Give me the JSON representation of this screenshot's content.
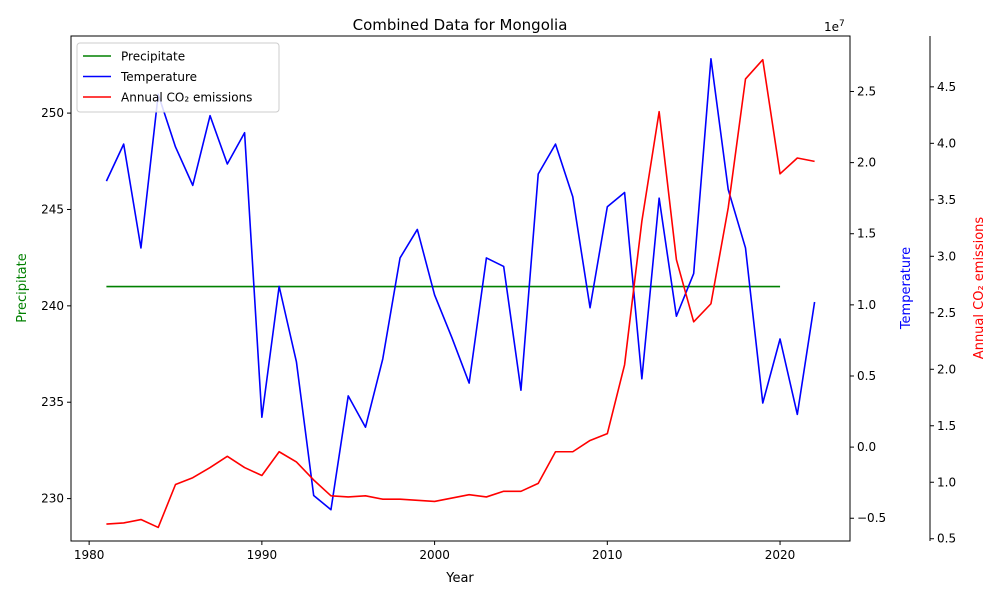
{
  "chart_data": {
    "type": "line",
    "title": "Combined Data for Mongolia",
    "xlabel": "Year",
    "xlim": [
      1978.95,
      2024.05
    ],
    "xticks": [
      1980,
      1990,
      2000,
      2010,
      2020
    ],
    "axes": {
      "left": {
        "label": "Precipitate",
        "color": "#008000",
        "ylim": [
          227.8,
          254.0
        ],
        "ticks": [
          230,
          235,
          240,
          245,
          250
        ],
        "multiplier": ""
      },
      "right": {
        "label": "Temperature",
        "color": "#0000ff",
        "ylim": [
          -0.66,
          2.89
        ],
        "ticks": [
          -0.5,
          0.0,
          0.5,
          1.0,
          1.5,
          2.0,
          2.5
        ],
        "multiplier": "1e7"
      },
      "right2": {
        "label": "Annual CO₂ emissions",
        "color": "#ff0000",
        "ylim": [
          0.48,
          4.95
        ],
        "ticks": [
          0.5,
          1.0,
          1.5,
          2.0,
          2.5,
          3.0,
          3.5,
          4.0,
          4.5
        ],
        "multiplier": "1e7"
      }
    },
    "series": [
      {
        "name": "Precipitate",
        "axis": "left",
        "color": "#008000",
        "x": [
          1981,
          2020
        ],
        "values": [
          241.0,
          241.0
        ]
      },
      {
        "name": "Temperature",
        "axis": "right",
        "color": "#0000ff",
        "x": [
          1981,
          1982,
          1983,
          1984,
          1985,
          1986,
          1987,
          1988,
          1989,
          1990,
          1991,
          1992,
          1993,
          1994,
          1995,
          1996,
          1997,
          1998,
          1999,
          2000,
          2001,
          2002,
          2003,
          2004,
          2005,
          2006,
          2007,
          2008,
          2009,
          2010,
          2011,
          2012,
          2013,
          2014,
          2015,
          2016,
          2017,
          2018,
          2019,
          2020,
          2021,
          2022
        ],
        "values": [
          1.87,
          2.13,
          1.4,
          2.48,
          2.11,
          1.84,
          2.33,
          1.99,
          2.21,
          0.21,
          1.13,
          0.6,
          -0.34,
          -0.44,
          0.36,
          0.14,
          0.62,
          1.33,
          1.53,
          1.07,
          0.77,
          0.45,
          1.33,
          1.27,
          0.4,
          1.92,
          2.13,
          1.76,
          0.98,
          1.69,
          1.79,
          0.48,
          1.75,
          0.92,
          1.22,
          2.73,
          1.81,
          1.4,
          0.31,
          0.76,
          0.23,
          1.02
        ]
      },
      {
        "name": "Annual CO₂ emissions",
        "axis": "right2",
        "color": "#ff0000",
        "x": [
          1981,
          1982,
          1983,
          1984,
          1985,
          1986,
          1987,
          1988,
          1989,
          1990,
          1991,
          1992,
          1993,
          1994,
          1995,
          1996,
          1997,
          1998,
          1999,
          2000,
          2001,
          2002,
          2003,
          2004,
          2005,
          2006,
          2007,
          2008,
          2009,
          2010,
          2011,
          2012,
          2013,
          2014,
          2015,
          2016,
          2017,
          2018,
          2019,
          2020,
          2021,
          2022
        ],
        "values": [
          0.63,
          0.64,
          0.67,
          0.6,
          0.98,
          1.04,
          1.13,
          1.23,
          1.13,
          1.06,
          1.27,
          1.18,
          1.02,
          0.88,
          0.87,
          0.88,
          0.85,
          0.85,
          0.84,
          0.83,
          0.86,
          0.89,
          0.87,
          0.92,
          0.92,
          0.99,
          1.27,
          1.27,
          1.37,
          1.43,
          2.04,
          3.31,
          4.28,
          2.97,
          2.42,
          2.58,
          3.43,
          4.57,
          4.74,
          3.73,
          3.87,
          3.84
        ]
      }
    ],
    "legend": {
      "position": "top-left",
      "entries": [
        "Precipitate",
        "Temperature",
        "Annual CO₂ emissions"
      ]
    }
  }
}
